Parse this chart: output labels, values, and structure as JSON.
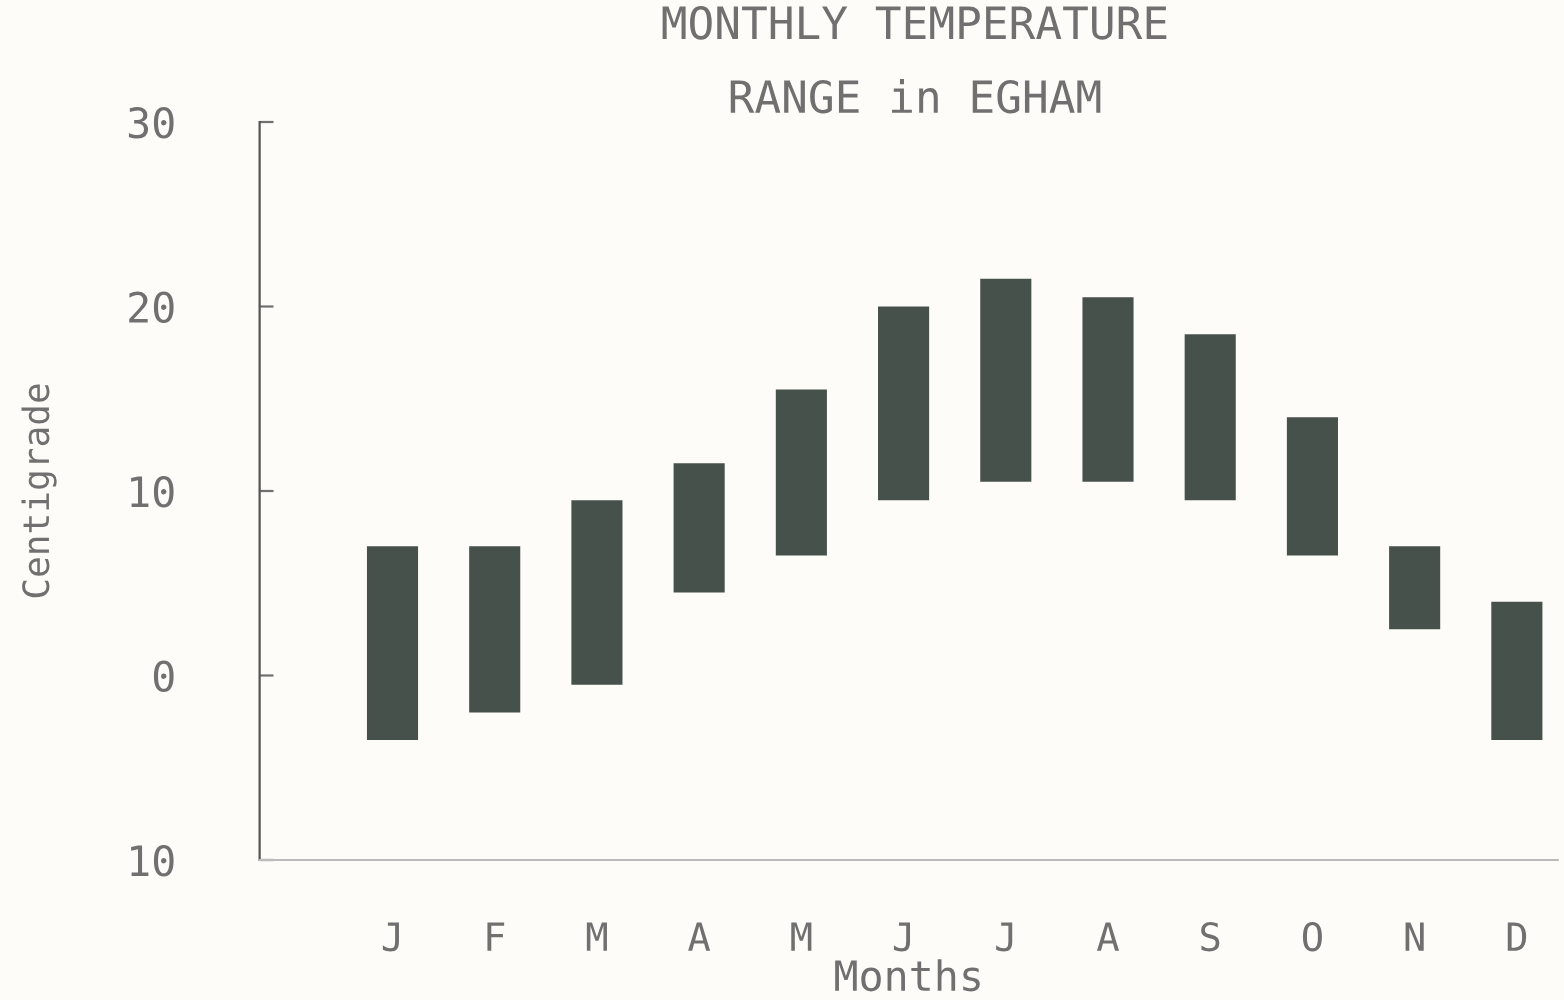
{
  "chart_data": {
    "type": "bar",
    "title": "MONTHLY TEMPERATURE\nRANGE in EGHAM",
    "xlabel": "Months",
    "ylabel": "Centigrade",
    "categories": [
      "J",
      "F",
      "M",
      "A",
      "M",
      "J",
      "J",
      "A",
      "S",
      "O",
      "N",
      "D"
    ],
    "base": [
      -3.5,
      -2,
      -0.5,
      4.5,
      6.5,
      9.5,
      10.5,
      10.5,
      9.5,
      6.5,
      2.5,
      -3.5
    ],
    "values": [
      10.5,
      9,
      10,
      7,
      9,
      10.5,
      11,
      10,
      9,
      7.5,
      4.5,
      7.5
    ],
    "color": "#46514c",
    "ylim": [
      -10,
      30
    ],
    "yticks": [
      {
        "value": -10,
        "label": "10"
      },
      0,
      10,
      20,
      30
    ],
    "grid": false,
    "legend": false
  }
}
